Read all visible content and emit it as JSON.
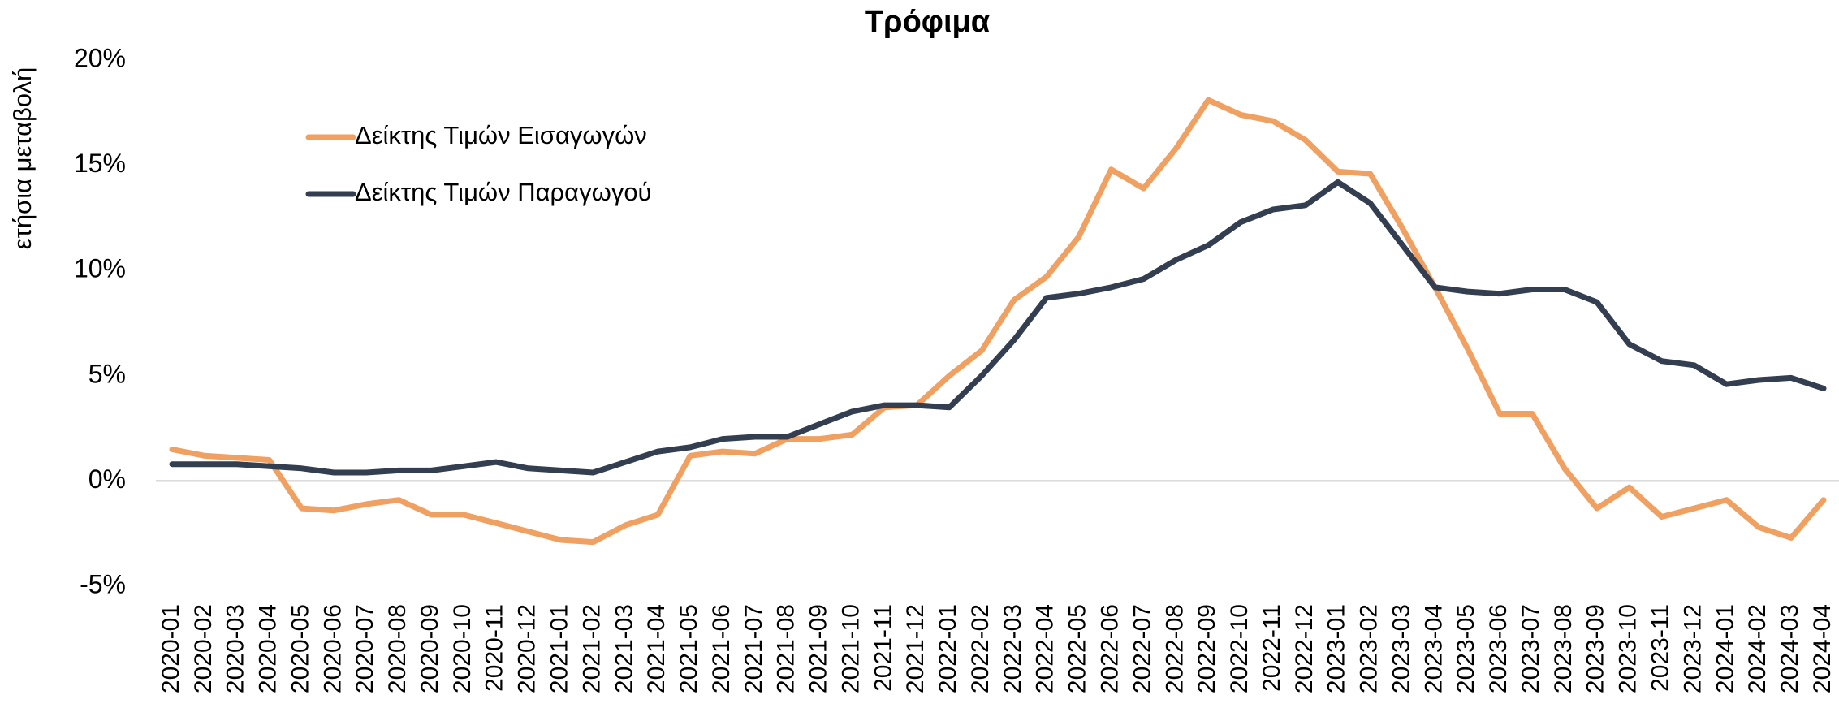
{
  "chart_data": {
    "type": "line",
    "title": "Τρόφιμα",
    "y_label": "ετήσια μεταβολή",
    "categories": [
      "2020-01",
      "2020-02",
      "2020-03",
      "2020-04",
      "2020-05",
      "2020-06",
      "2020-07",
      "2020-08",
      "2020-09",
      "2020-10",
      "2020-11",
      "2020-12",
      "2021-01",
      "2021-02",
      "2021-03",
      "2021-04",
      "2021-05",
      "2021-06",
      "2021-07",
      "2021-08",
      "2021-09",
      "2021-10",
      "2021-11",
      "2021-12",
      "2022-01",
      "2022-02",
      "2022-03",
      "2022-04",
      "2022-05",
      "2022-06",
      "2022-07",
      "2022-08",
      "2022-09",
      "2022-10",
      "2022-11",
      "2022-12",
      "2023-01",
      "2023-02",
      "2023-03",
      "2023-04",
      "2023-05",
      "2023-06",
      "2023-07",
      "2023-08",
      "2023-09",
      "2023-10",
      "2023-11",
      "2023-12",
      "2024-01",
      "2024-02",
      "2024-03",
      "2024-04"
    ],
    "series": [
      {
        "name": "Δείκτης Τιμών Εισαγωγών",
        "color": "#f0a060",
        "values": [
          1.5,
          1.2,
          1.1,
          1.0,
          -1.3,
          -1.4,
          -1.1,
          -0.9,
          -1.6,
          -1.6,
          -2.0,
          -2.4,
          -2.8,
          -2.9,
          -2.1,
          -1.6,
          1.2,
          1.4,
          1.3,
          2.0,
          2.0,
          2.2,
          3.5,
          3.6,
          5.0,
          6.2,
          8.6,
          9.7,
          11.6,
          14.8,
          13.9,
          15.8,
          18.1,
          17.4,
          17.1,
          16.2,
          14.7,
          14.6,
          12.0,
          9.2,
          6.3,
          3.2,
          3.2,
          0.6,
          -1.3,
          -0.3,
          -1.7,
          -1.3,
          -0.9,
          -2.2,
          -2.7,
          -0.9
        ]
      },
      {
        "name": "Δείκτης Τιμών Παραγωγού",
        "color": "#333f50",
        "values": [
          0.8,
          0.8,
          0.8,
          0.7,
          0.6,
          0.4,
          0.4,
          0.5,
          0.5,
          0.7,
          0.9,
          0.6,
          0.5,
          0.4,
          0.9,
          1.4,
          1.6,
          2.0,
          2.1,
          2.1,
          2.7,
          3.3,
          3.6,
          3.6,
          3.5,
          5.0,
          6.7,
          8.7,
          8.9,
          9.2,
          9.6,
          10.5,
          11.2,
          12.3,
          12.9,
          13.1,
          14.2,
          13.2,
          11.2,
          9.2,
          9.0,
          8.9,
          9.1,
          9.1,
          8.5,
          6.5,
          5.7,
          5.5,
          4.6,
          4.8,
          4.9,
          4.4
        ]
      }
    ],
    "ylim": [
      -5,
      20
    ],
    "yticks": [
      {
        "value": -5,
        "label": "-5%"
      },
      {
        "value": 0,
        "label": "0%"
      },
      {
        "value": 5,
        "label": "5%"
      },
      {
        "value": 10,
        "label": "10%"
      },
      {
        "value": 15,
        "label": "15%"
      },
      {
        "value": 20,
        "label": "20%"
      }
    ],
    "zero_line": true,
    "legend": "upper left"
  }
}
